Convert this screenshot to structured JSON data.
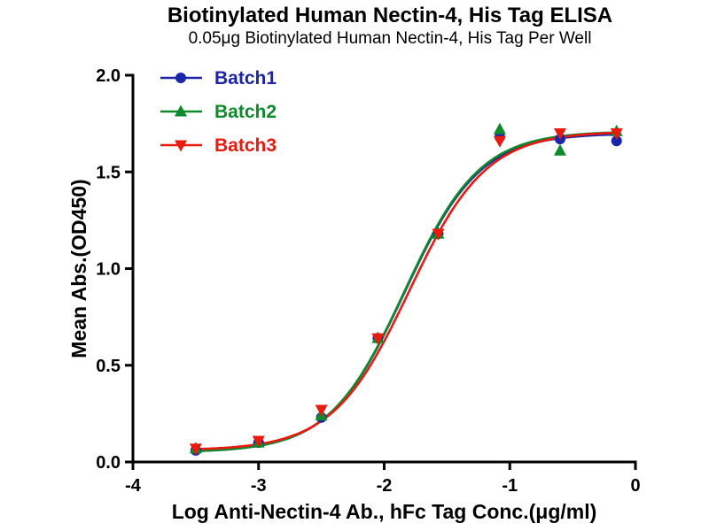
{
  "chart_data": {
    "type": "scatter",
    "title": "Biotinylated Human Nectin-4, His Tag ELISA",
    "subtitle": "0.05μg Biotinylated Human Nectin-4, His Tag Per Well",
    "xlabel": "Log Anti-Nectin-4 Ab., hFc Tag Conc.(μg/ml)",
    "ylabel": "Mean Abs.(OD450)",
    "xlim": [
      -4,
      0
    ],
    "ylim": [
      0,
      2
    ],
    "x_ticks": [
      -4,
      -3,
      -2,
      -1,
      0
    ],
    "x_tick_labels": [
      "-4",
      "-3",
      "-2",
      "-1",
      "0"
    ],
    "y_ticks": [
      0,
      0.5,
      1.0,
      1.5,
      2.0
    ],
    "y_tick_labels": [
      "0.0",
      "0.5",
      "1.0",
      "1.5",
      "2.0"
    ],
    "grid": false,
    "legend_position": "top-left-inside",
    "series": [
      {
        "name": "Batch1",
        "color": "#1c24a8",
        "marker": "circle",
        "x": [
          -3.5,
          -3.0,
          -2.5,
          -2.05,
          -1.57,
          -1.08,
          -0.6,
          -0.15
        ],
        "y": [
          0.06,
          0.1,
          0.23,
          0.64,
          1.18,
          1.68,
          1.67,
          1.66
        ],
        "fit": {
          "bottom": 0.05,
          "top": 1.7,
          "logec50": -1.84,
          "hill": 1.45
        }
      },
      {
        "name": "Batch2",
        "color": "#0e8a2c",
        "marker": "triangle-up",
        "x": [
          -3.5,
          -3.0,
          -2.5,
          -2.05,
          -1.57,
          -1.08,
          -0.6,
          -0.15
        ],
        "y": [
          0.07,
          0.1,
          0.24,
          0.64,
          1.18,
          1.72,
          1.61,
          1.71
        ],
        "fit": {
          "bottom": 0.05,
          "top": 1.71,
          "logec50": -1.84,
          "hill": 1.45
        }
      },
      {
        "name": "Batch3",
        "color": "#ea1a0e",
        "marker": "triangle-down",
        "x": [
          -3.5,
          -3.0,
          -2.5,
          -2.05,
          -1.57,
          -1.08,
          -0.6,
          -0.15
        ],
        "y": [
          0.07,
          0.11,
          0.27,
          0.64,
          1.18,
          1.66,
          1.7,
          1.7
        ],
        "fit": {
          "bottom": 0.06,
          "top": 1.71,
          "logec50": -1.8,
          "hill": 1.42
        }
      }
    ]
  }
}
